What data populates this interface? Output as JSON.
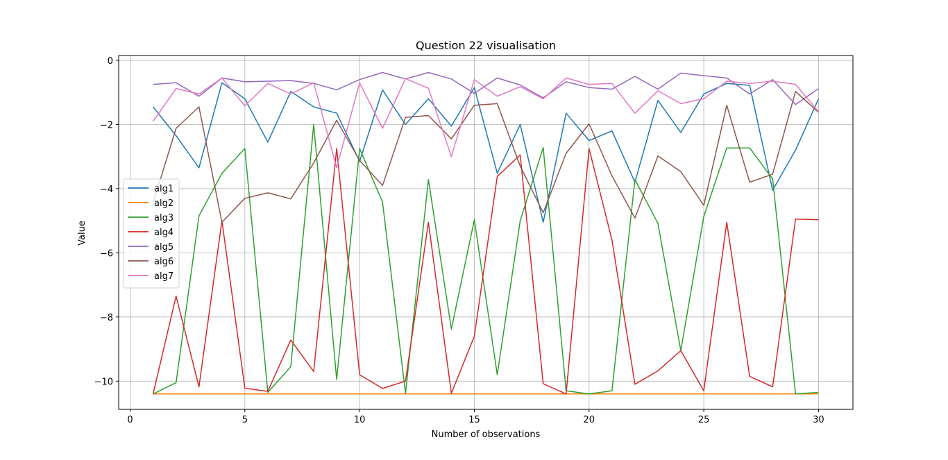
{
  "chart_data": {
    "type": "line",
    "title": "Question 22 visualisation",
    "xlabel": "Number of observations",
    "ylabel": "Value",
    "xlim": [
      -0.5,
      31.5
    ],
    "ylim": [
      -10.88,
      0.15
    ],
    "xticks": [
      0,
      5,
      10,
      15,
      20,
      25,
      30
    ],
    "yticks": [
      0,
      -2,
      -4,
      -6,
      -8,
      -10
    ],
    "grid": true,
    "legend_position": "center-left",
    "x": [
      1,
      2,
      3,
      4,
      5,
      6,
      7,
      8,
      9,
      10,
      11,
      12,
      13,
      14,
      15,
      16,
      17,
      18,
      19,
      20,
      21,
      22,
      23,
      24,
      25,
      26,
      27,
      28,
      29,
      30
    ],
    "series": [
      {
        "name": "alg1",
        "color": "#1f77b4",
        "values": [
          -1.45,
          -2.35,
          -3.35,
          -0.7,
          -1.2,
          -2.55,
          -0.97,
          -1.45,
          -1.65,
          -3.15,
          -0.92,
          -2.0,
          -1.2,
          -2.05,
          -0.85,
          -3.52,
          -2.0,
          -5.05,
          -1.65,
          -2.5,
          -2.2,
          -3.8,
          -1.25,
          -2.25,
          -1.05,
          -0.72,
          -0.78,
          -4.05,
          -2.8,
          -1.2
        ]
      },
      {
        "name": "alg2",
        "color": "#ff7f0e",
        "values": [
          -10.4,
          -10.4,
          -10.4,
          -10.4,
          -10.4,
          -10.4,
          -10.4,
          -10.4,
          -10.4,
          -10.4,
          -10.4,
          -10.4,
          -10.4,
          -10.4,
          -10.4,
          -10.4,
          -10.4,
          -10.4,
          -10.4,
          -10.4,
          -10.4,
          -10.4,
          -10.4,
          -10.4,
          -10.4,
          -10.4,
          -10.4,
          -10.4,
          -10.4,
          -10.4
        ]
      },
      {
        "name": "alg3",
        "color": "#2ca02c",
        "values": [
          -10.4,
          -10.05,
          -4.85,
          -3.52,
          -2.75,
          -10.35,
          -9.55,
          -2.0,
          -9.95,
          -2.75,
          -4.42,
          -10.38,
          -3.72,
          -8.38,
          -4.97,
          -9.8,
          -5.0,
          -2.72,
          -10.3,
          -10.4,
          -10.3,
          -3.72,
          -5.08,
          -9.05,
          -4.87,
          -2.73,
          -2.73,
          -3.7,
          -10.4,
          -10.35
        ]
      },
      {
        "name": "alg4",
        "color": "#d62728",
        "values": [
          -10.4,
          -7.35,
          -10.18,
          -5.0,
          -10.22,
          -10.32,
          -8.72,
          -9.7,
          -2.75,
          -9.8,
          -10.23,
          -10.0,
          -5.05,
          -10.38,
          -8.6,
          -3.62,
          -2.95,
          -10.08,
          -10.4,
          -2.75,
          -5.6,
          -10.1,
          -9.68,
          -9.05,
          -10.3,
          -5.05,
          -9.85,
          -10.18,
          -4.95,
          -4.97
        ]
      },
      {
        "name": "alg5",
        "color": "#9467bd",
        "values": [
          -0.75,
          -0.7,
          -1.12,
          -0.55,
          -0.67,
          -0.65,
          -0.63,
          -0.72,
          -0.92,
          -0.6,
          -0.38,
          -0.58,
          -0.38,
          -0.58,
          -1.03,
          -0.55,
          -0.77,
          -1.17,
          -0.67,
          -0.85,
          -0.9,
          -0.5,
          -0.9,
          -0.4,
          -0.48,
          -0.55,
          -1.05,
          -0.6,
          -1.38,
          -0.88
        ]
      },
      {
        "name": "alg6",
        "color": "#8c564b",
        "values": [
          -4.45,
          -2.12,
          -1.45,
          -5.05,
          -4.3,
          -4.13,
          -4.32,
          -3.2,
          -1.87,
          -3.12,
          -3.9,
          -1.78,
          -1.72,
          -2.45,
          -1.4,
          -1.35,
          -3.3,
          -4.75,
          -2.9,
          -1.98,
          -3.6,
          -4.92,
          -2.98,
          -3.47,
          -4.52,
          -1.4,
          -3.8,
          -3.55,
          -0.97,
          -1.62
        ]
      },
      {
        "name": "alg7",
        "color": "#e377c2",
        "values": [
          -1.9,
          -0.88,
          -1.05,
          -0.55,
          -1.42,
          -0.72,
          -1.05,
          -0.7,
          -3.35,
          -0.7,
          -2.12,
          -0.57,
          -0.87,
          -3.0,
          -0.6,
          -1.12,
          -0.82,
          -1.2,
          -0.55,
          -0.75,
          -0.72,
          -1.65,
          -0.95,
          -1.35,
          -1.2,
          -0.65,
          -0.72,
          -0.65,
          -0.75,
          -1.6
        ]
      }
    ]
  }
}
